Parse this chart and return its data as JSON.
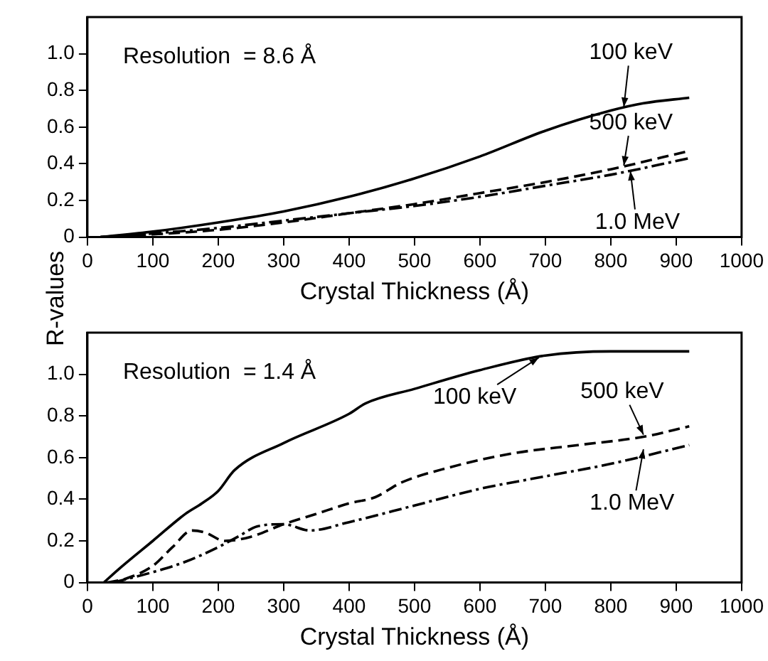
{
  "chart_data": [
    {
      "type": "line",
      "ylabel": "R-values",
      "xlabel": "Crystal Thickness (Å)",
      "xlim": [
        0,
        1000
      ],
      "xticks": [
        0,
        100,
        200,
        300,
        400,
        500,
        600,
        700,
        800,
        900,
        1000
      ],
      "ylim": [
        0,
        1.2
      ],
      "yticks": [
        0,
        0.2,
        0.4,
        0.6,
        0.8,
        {
          "value": 1,
          "label": "1.0"
        }
      ],
      "grid": false,
      "legend": false,
      "marker": "none",
      "series": [
        {
          "color": "#000000",
          "line_style": "solid",
          "x": [
            20,
            100,
            200,
            300,
            400,
            500,
            600,
            700,
            800,
            850,
            920
          ],
          "values": [
            0,
            0.03,
            0.08,
            0.14,
            0.22,
            0.32,
            0.44,
            0.58,
            0.69,
            0.73,
            0.76
          ]
        },
        {
          "color": "#000000",
          "line_style": "dashed",
          "x": [
            20,
            100,
            200,
            300,
            400,
            500,
            600,
            700,
            800,
            920
          ],
          "values": [
            0,
            0.015,
            0.04,
            0.08,
            0.13,
            0.18,
            0.24,
            0.3,
            0.37,
            0.47
          ]
        },
        {
          "color": "#000000",
          "line_style": "dashdot",
          "x": [
            20,
            100,
            200,
            300,
            400,
            500,
            600,
            700,
            800,
            920
          ],
          "values": [
            0,
            0.02,
            0.05,
            0.09,
            0.13,
            0.17,
            0.22,
            0.28,
            0.34,
            0.43
          ]
        }
      ],
      "annotations": [
        "Resolution  = 8.6 Å",
        {
          "text": "100 keV",
          "x": 820,
          "y": 0.71
        },
        {
          "text": "500 keV",
          "x": 820,
          "y": 0.39
        },
        {
          "text": "1.0 MeV",
          "x": 830,
          "y": 0.36
        }
      ]
    },
    {
      "type": "line",
      "xlabel": "Crystal Thickness (Å)",
      "xlim": [
        0,
        1000
      ],
      "xticks": [
        0,
        100,
        200,
        300,
        400,
        500,
        600,
        700,
        800,
        900,
        1000
      ],
      "ylim": [
        0,
        1.2
      ],
      "yticks": [
        0,
        0.2,
        0.4,
        0.6,
        0.8,
        {
          "value": 1,
          "label": "1.0"
        }
      ],
      "grid": false,
      "legend": false,
      "marker": "none",
      "series": [
        {
          "color": "#000000",
          "line_style": "solid",
          "x": [
            25,
            50,
            100,
            150,
            175,
            200,
            225,
            300,
            400,
            425,
            500,
            600,
            700,
            800,
            920
          ],
          "values": [
            0,
            0.07,
            0.2,
            0.33,
            0.38,
            0.44,
            0.54,
            0.67,
            0.81,
            0.86,
            0.93,
            1.02,
            1.09,
            1.11,
            1.11
          ]
        },
        {
          "color": "#000000",
          "line_style": "dashed",
          "x": [
            30,
            60,
            100,
            130,
            160,
            180,
            210,
            250,
            300,
            350,
            400,
            440,
            480,
            550,
            650,
            750,
            850,
            920
          ],
          "values": [
            0,
            0.02,
            0.08,
            0.17,
            0.25,
            0.24,
            0.2,
            0.22,
            0.28,
            0.33,
            0.38,
            0.41,
            0.48,
            0.55,
            0.62,
            0.66,
            0.7,
            0.75
          ]
        },
        {
          "color": "#000000",
          "line_style": "dashdot",
          "x": [
            40,
            100,
            150,
            200,
            230,
            260,
            300,
            340,
            400,
            500,
            600,
            700,
            800,
            920
          ],
          "values": [
            0,
            0.05,
            0.1,
            0.17,
            0.22,
            0.27,
            0.28,
            0.25,
            0.29,
            0.37,
            0.45,
            0.51,
            0.57,
            0.66
          ]
        }
      ],
      "annotations": [
        "Resolution  = 1.4 Å",
        {
          "text": "100 keV",
          "x": 690,
          "y": 1.08
        },
        {
          "text": "500 keV",
          "x": 850,
          "y": 0.71
        },
        {
          "text": "1.0 MeV",
          "x": 850,
          "y": 0.64
        }
      ]
    }
  ]
}
